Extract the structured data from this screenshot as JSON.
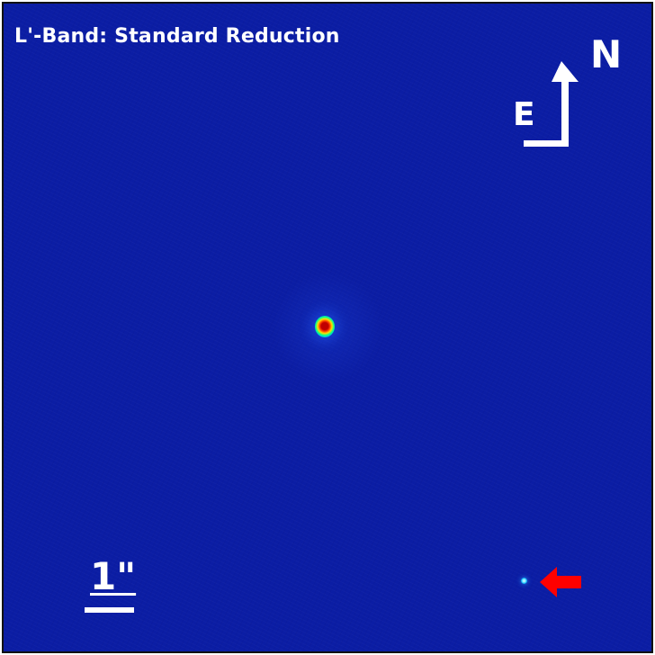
{
  "image": {
    "title": "L'-Band: Standard Reduction",
    "colors": {
      "background": "#0b1da4",
      "star_core": "#c00000",
      "arrow": "#ff0000",
      "annotations": "#ffffff"
    }
  },
  "compass": {
    "north": "N",
    "east": "E",
    "icon": "north-east-compass"
  },
  "scale": {
    "label": "1\"",
    "icon": "scale-bar"
  },
  "markers": {
    "companion_arrow_icon": "red-left-arrow"
  }
}
